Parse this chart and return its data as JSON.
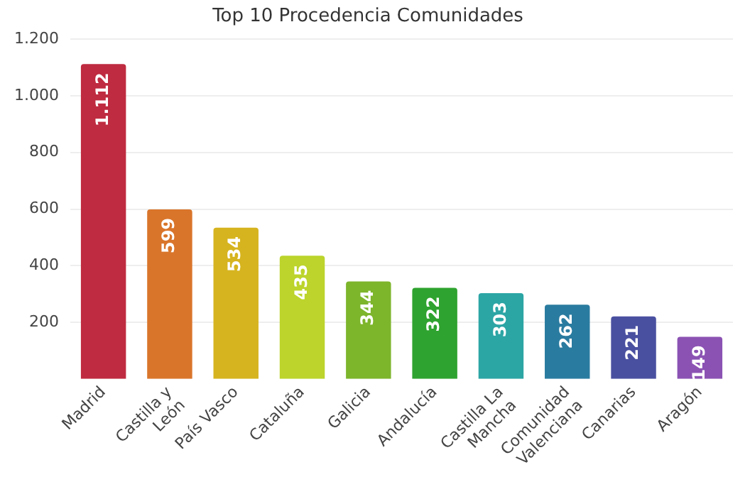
{
  "chart_data": {
    "type": "bar",
    "title": "Top 10 Procedencia Comunidades",
    "categories": [
      "Madrid",
      "Castilla y León",
      "País Vasco",
      "Cataluña",
      "Galicia",
      "Andalucía",
      "Castilla La Mancha",
      "Comunidad Valenciana",
      "Canarias",
      "Aragón"
    ],
    "values": [
      1112,
      599,
      534,
      435,
      344,
      322,
      303,
      262,
      221,
      149
    ],
    "value_labels": [
      "1.112",
      "599",
      "534",
      "435",
      "344",
      "322",
      "303",
      "262",
      "221",
      "149"
    ],
    "colors": [
      "#bf2b40",
      "#d9752a",
      "#d6b41f",
      "#bcd42b",
      "#7db52b",
      "#2ea32f",
      "#2ca5a5",
      "#2a7ba0",
      "#4a50a0",
      "#8b52b3"
    ],
    "ylim": [
      0,
      1200
    ],
    "yticks": [
      {
        "value": 200,
        "label": "200"
      },
      {
        "value": 400,
        "label": "400"
      },
      {
        "value": 600,
        "label": "600"
      },
      {
        "value": 800,
        "label": "800"
      },
      {
        "value": 1000,
        "label": "1.000"
      },
      {
        "value": 1200,
        "label": "1.200"
      }
    ],
    "grid": "y"
  }
}
